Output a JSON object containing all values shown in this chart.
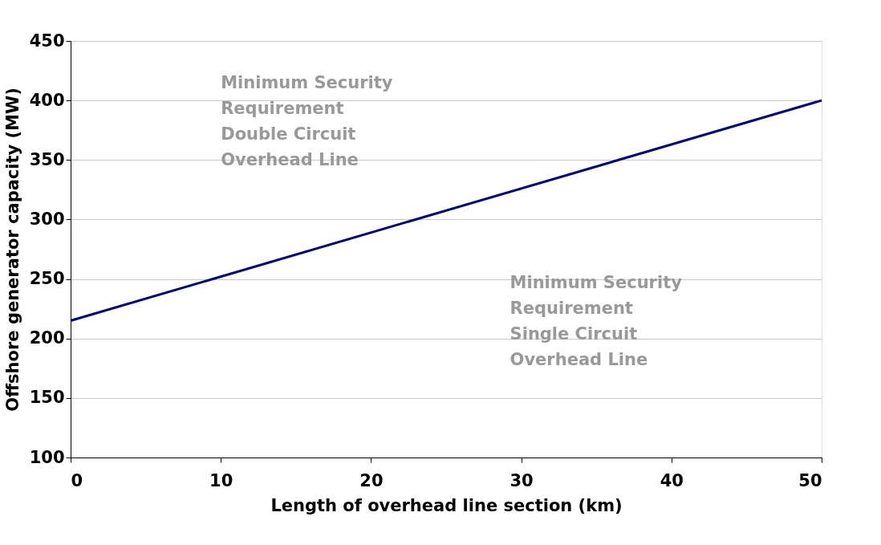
{
  "chart_data": {
    "type": "line",
    "xlabel": "Length of overhead line section (km)",
    "ylabel": "Offshore generator capacity (MW)",
    "x": [
      0,
      50
    ],
    "series": [
      {
        "color": "#000080",
        "values": [
          215,
          400
        ]
      }
    ],
    "xlim": [
      0,
      50
    ],
    "xticks": [
      0,
      10,
      20,
      30,
      40,
      50
    ],
    "ylim": [
      100,
      450
    ],
    "yticks": [
      100,
      150,
      200,
      250,
      300,
      350,
      400,
      450
    ],
    "grid": "y",
    "marker": "none",
    "line_style": "solid",
    "annotations": [
      "Minimum Security\nRequirement\nDouble Circuit\nOverhead Line",
      "Minimum Security\nRequirement\nSingle Circuit\nOverhead Line"
    ]
  }
}
